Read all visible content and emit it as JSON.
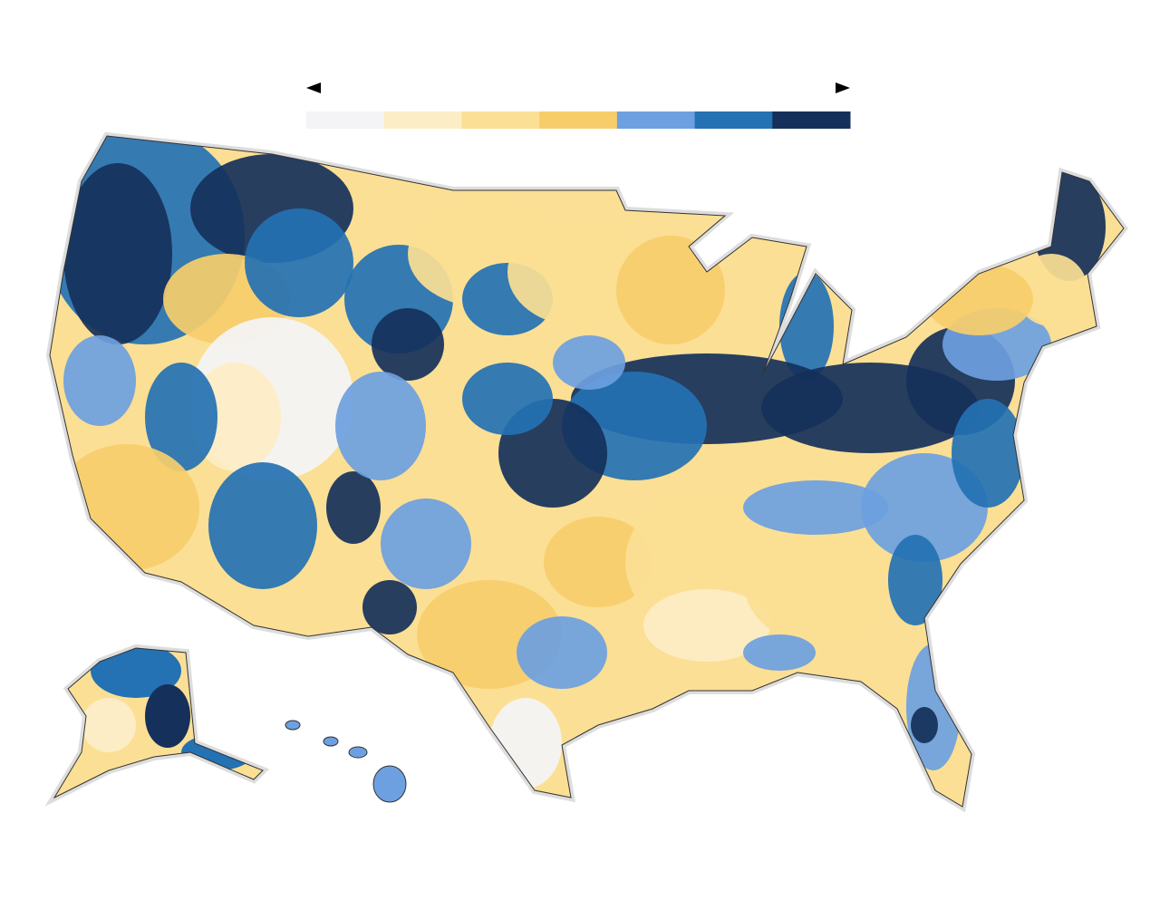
{
  "legend": {
    "colors": [
      "#f4f4f6",
      "#fdedc6",
      "#fbdf94",
      "#f7cd6b",
      "#6da0e0",
      "#2471b3",
      "#15305a"
    ]
  }
}
